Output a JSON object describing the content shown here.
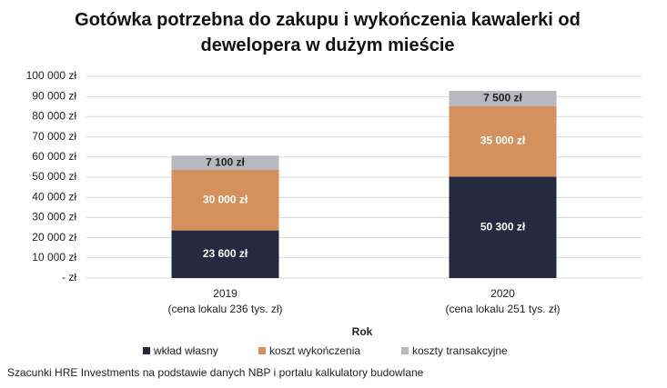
{
  "chart_data": {
    "type": "stacked_bar",
    "title": "Gotówka potrzebna do zakupu i wykończenia kawalerki od dewelopera w dużym mieście",
    "categories": [
      "2019",
      "2020"
    ],
    "category_subtitles": [
      "(cena lokalu 236 tys. zł)",
      "(cena lokalu 251 tys. zł)"
    ],
    "x_label": "Rok",
    "series": [
      {
        "name": "wkład własny",
        "color": "#262a40",
        "values": [
          23600,
          50300
        ],
        "value_labels": [
          "23 600 zł",
          "50 300 zł"
        ]
      },
      {
        "name": "koszt wykończenia",
        "color": "#d4915e",
        "values": [
          30000,
          35000
        ],
        "value_labels": [
          "30 000 zł",
          "35 000 zł"
        ]
      },
      {
        "name": "koszty transakcyjne",
        "color": "#b8b8c0",
        "values": [
          7100,
          7500
        ],
        "value_labels": [
          "7 100 zł",
          "7 500 zł"
        ]
      }
    ],
    "ylim": [
      0,
      100000
    ],
    "yticks": [
      {
        "value": 0,
        "label": "-   zł"
      },
      {
        "value": 10000,
        "label": "10 000 zł"
      },
      {
        "value": 20000,
        "label": "20 000 zł"
      },
      {
        "value": 30000,
        "label": "30 000 zł"
      },
      {
        "value": 40000,
        "label": "40 000 zł"
      },
      {
        "value": 50000,
        "label": "50 000 zł"
      },
      {
        "value": 60000,
        "label": "60 000 zł"
      },
      {
        "value": 70000,
        "label": "70 000 zł"
      },
      {
        "value": 80000,
        "label": "80 000 zł"
      },
      {
        "value": 90000,
        "label": "90 000 zł"
      },
      {
        "value": 100000,
        "label": "100 000 zł"
      }
    ],
    "grid": true,
    "legend": "bottom",
    "source": "Szacunki HRE Investments na podstawie danych NBP i portalu kalkulatory budowlane"
  }
}
